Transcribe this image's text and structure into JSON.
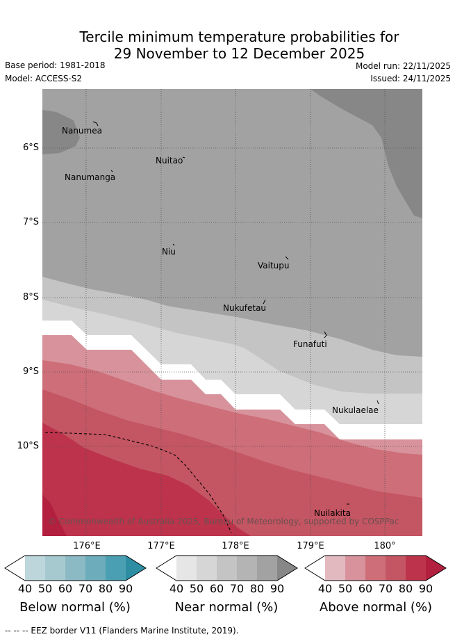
{
  "title_line1": "Tercile minimum temperature probabilities for",
  "title_line2": "29 November to 12 December 2025",
  "base_period": "Base period: 1981-2018",
  "model": "Model: ACCESS-S2",
  "model_run": "Model run: 22/11/2025",
  "issued": "Issued: 24/11/2025",
  "lat_labels": [
    "6°S",
    "7°S",
    "8°S",
    "9°S",
    "10°S"
  ],
  "lon_labels": [
    "176°E",
    "177°E",
    "178°E",
    "179°E",
    "180°"
  ],
  "places": {
    "nanumea": "Nanumea",
    "nuitao": "Nuitao",
    "nanumanga": "Nanumanga",
    "niu": "Niu",
    "vaitupu": "Vaitupu",
    "nukufetau": "Nukufetau",
    "funafuti": "Funafuti",
    "nukulaelae": "Nukulaelae",
    "nuilakita": "Nuilakita"
  },
  "copyright": "© Commonwealth of Australia 2025, Bureau of Meteorology, supported by COSPPac",
  "legend": {
    "below": {
      "title": "Below normal (%)",
      "ticks": [
        "40",
        "50",
        "60",
        "70",
        "80",
        "90"
      ],
      "colors": [
        "#ffffff",
        "#bcd6dc",
        "#a6c9cf",
        "#8bbac5",
        "#6dadbb",
        "#4aa0b2",
        "#2c8da3"
      ]
    },
    "near": {
      "title": "Near normal (%)",
      "ticks": [
        "40",
        "50",
        "60",
        "70",
        "80",
        "90"
      ],
      "colors": [
        "#ffffff",
        "#e6e6e6",
        "#d6d6d6",
        "#c4c4c4",
        "#b4b4b4",
        "#a2a2a2",
        "#878787"
      ]
    },
    "above": {
      "title": "Above normal (%)",
      "ticks": [
        "40",
        "50",
        "60",
        "70",
        "80",
        "90"
      ],
      "colors": [
        "#ffffff",
        "#e3b9c0",
        "#d7929b",
        "#cd6e79",
        "#c45562",
        "#bc334b",
        "#b21f3f"
      ]
    }
  },
  "footnote": "-- -- -- EEZ border V11 (Flanders Marine Institute, 2019)."
}
